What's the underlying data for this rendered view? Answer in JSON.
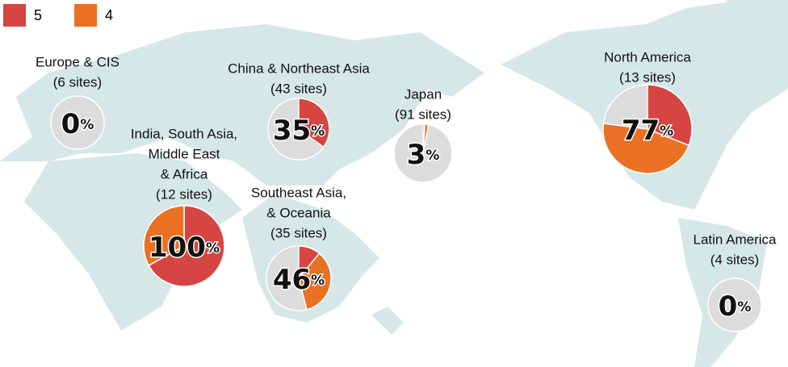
{
  "legend": [
    {
      "label": "5",
      "color": "#d64541"
    },
    {
      "label": "4",
      "color": "#ea7024"
    }
  ],
  "other_color": "#dcdcdc",
  "regions": [
    {
      "name_lines": [
        "Europe & CIS"
      ],
      "sites": "(6 sites)",
      "percent": 0,
      "unit": "%",
      "values": [
        0,
        0
      ]
    },
    {
      "name_lines": [
        "China & Northeast Asia"
      ],
      "sites": "(43 sites)",
      "percent": 35,
      "unit": "%",
      "values": [
        35,
        0
      ]
    },
    {
      "name_lines": [
        "Japan"
      ],
      "sites": "(91 sites)",
      "percent": 3,
      "unit": "%",
      "values": [
        1,
        2
      ]
    },
    {
      "name_lines": [
        "India, South Asia,",
        "Middle East",
        "& Africa"
      ],
      "sites": "(12 sites)",
      "percent": 100,
      "unit": "%",
      "values": [
        67,
        33
      ]
    },
    {
      "name_lines": [
        "Southeast Asia,",
        "& Oceania"
      ],
      "sites": "(35 sites)",
      "percent": 46,
      "unit": "%",
      "values": [
        11,
        35
      ]
    },
    {
      "name_lines": [
        "North America"
      ],
      "sites": "(13 sites)",
      "percent": 77,
      "unit": "%",
      "values": [
        31,
        46
      ]
    },
    {
      "name_lines": [
        "Latin America"
      ],
      "sites": "(4 sites)",
      "percent": 0,
      "unit": "%",
      "values": [
        0,
        0
      ]
    }
  ]
}
